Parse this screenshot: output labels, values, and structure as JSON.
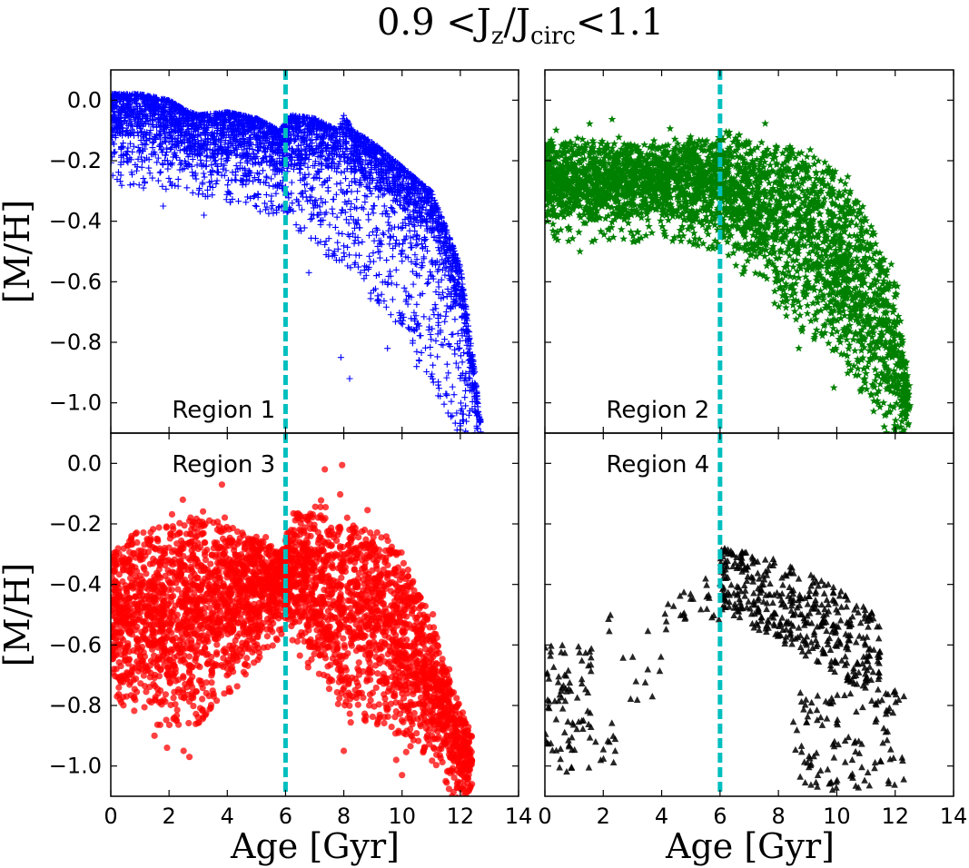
{
  "title": "0.9 < J_z / J_circ < 1.1",
  "title_parts": {
    "lead": "0.9 <J",
    "sub1": "z",
    "mid": "/J",
    "sub2": "circ",
    "tail": "<1.1"
  },
  "chart_data": {
    "type": "scatter",
    "xlabel": "Age [Gyr]",
    "ylabel": "[M/H]",
    "xlim": [
      0,
      14
    ],
    "ylim": [
      -1.1,
      0.1
    ],
    "x_ticks": [
      "0",
      "2",
      "4",
      "6",
      "8",
      "10",
      "12",
      "14"
    ],
    "y_ticks": [
      "0.0",
      "−0.2",
      "−0.4",
      "−0.6",
      "−0.8",
      "−1.0"
    ],
    "vline": {
      "x": 6.0,
      "color": "#00bfbf",
      "style": "dashed"
    },
    "grid": false,
    "panels": [
      {
        "label": "Region 1",
        "marker": "plus",
        "color": "#0000ff",
        "envelope": [
          [
            0,
            0.02
          ],
          [
            1,
            0.02
          ],
          [
            2,
            0.0
          ],
          [
            2.5,
            -0.03
          ],
          [
            3,
            -0.05
          ],
          [
            4,
            -0.04
          ],
          [
            5,
            -0.06
          ],
          [
            5.8,
            -0.1
          ],
          [
            6.2,
            -0.05
          ],
          [
            7,
            -0.06
          ],
          [
            7.8,
            -0.1
          ],
          [
            8,
            -0.05
          ],
          [
            8.3,
            -0.1
          ],
          [
            9,
            -0.14
          ],
          [
            10,
            -0.22
          ],
          [
            11,
            -0.3
          ],
          [
            11.5,
            -0.42
          ],
          [
            12,
            -0.55
          ],
          [
            12.5,
            -0.9
          ],
          [
            12.7,
            -1.1
          ]
        ],
        "lower": [
          [
            0,
            -0.2
          ],
          [
            2,
            -0.22
          ],
          [
            4,
            -0.26
          ],
          [
            6,
            -0.32
          ],
          [
            8,
            -0.48
          ],
          [
            10,
            -0.7
          ],
          [
            11,
            -0.85
          ],
          [
            12,
            -1.05
          ]
        ],
        "outliers": [
          [
            1.8,
            -0.35
          ],
          [
            3.2,
            -0.38
          ],
          [
            8.2,
            -0.92
          ],
          [
            7.9,
            -0.85
          ],
          [
            9.5,
            -0.82
          ],
          [
            10.5,
            -0.88
          ],
          [
            6.8,
            -0.57
          ],
          [
            5.9,
            -0.2
          ]
        ]
      },
      {
        "label": "Region 2",
        "marker": "star",
        "color": "#008000",
        "envelope": [
          [
            0,
            -0.14
          ],
          [
            2,
            -0.14
          ],
          [
            4,
            -0.15
          ],
          [
            6,
            -0.12
          ],
          [
            8,
            -0.14
          ],
          [
            9,
            -0.16
          ],
          [
            10,
            -0.23
          ],
          [
            11,
            -0.35
          ],
          [
            11.5,
            -0.5
          ],
          [
            12,
            -0.6
          ],
          [
            12.5,
            -0.95
          ]
        ],
        "lower": [
          [
            0,
            -0.38
          ],
          [
            2,
            -0.4
          ],
          [
            4,
            -0.38
          ],
          [
            6,
            -0.42
          ],
          [
            7,
            -0.52
          ],
          [
            8,
            -0.62
          ],
          [
            9,
            -0.7
          ],
          [
            10,
            -0.78
          ],
          [
            11,
            -0.92
          ],
          [
            12,
            -1.08
          ]
        ],
        "outliers": [
          [
            1.2,
            -0.5
          ],
          [
            2.2,
            -0.46
          ],
          [
            8.7,
            -0.82
          ],
          [
            9.9,
            -0.95
          ],
          [
            11.6,
            -1.0
          ],
          [
            12.1,
            -1.08
          ]
        ]
      },
      {
        "label": "Region 3",
        "marker": "circle",
        "color": "#ff0000",
        "envelope": [
          [
            0,
            -0.3
          ],
          [
            1,
            -0.22
          ],
          [
            2,
            -0.2
          ],
          [
            3,
            -0.18
          ],
          [
            4,
            -0.2
          ],
          [
            5,
            -0.25
          ],
          [
            5.9,
            -0.28
          ],
          [
            6.1,
            -0.22
          ],
          [
            6.5,
            -0.15
          ],
          [
            7,
            -0.16
          ],
          [
            8,
            -0.2
          ],
          [
            9,
            -0.2
          ],
          [
            10,
            -0.3
          ],
          [
            10.5,
            -0.4
          ],
          [
            11,
            -0.5
          ],
          [
            11.5,
            -0.68
          ],
          [
            12,
            -0.8
          ],
          [
            12.4,
            -0.9
          ]
        ],
        "lower": [
          [
            0,
            -0.7
          ],
          [
            1,
            -0.75
          ],
          [
            2,
            -0.82
          ],
          [
            3,
            -0.78
          ],
          [
            4,
            -0.7
          ],
          [
            5,
            -0.58
          ],
          [
            6,
            -0.48
          ],
          [
            7,
            -0.65
          ],
          [
            8,
            -0.75
          ],
          [
            9,
            -0.78
          ],
          [
            10,
            -0.85
          ],
          [
            11,
            -0.9
          ],
          [
            12,
            -1.08
          ]
        ],
        "outliers": [
          [
            2.5,
            -0.95
          ],
          [
            2.7,
            -0.97
          ],
          [
            1.5,
            -0.9
          ],
          [
            8.0,
            -0.95
          ],
          [
            9.8,
            -0.98
          ],
          [
            10.0,
            -1.03
          ],
          [
            11.5,
            -1.05
          ],
          [
            12.3,
            -1.08
          ]
        ]
      },
      {
        "label": "Region 4",
        "marker": "triangle",
        "color": "#000000",
        "clusters": [
          {
            "x": [
              0,
              1.6
            ],
            "y": [
              -0.95,
              -0.6
            ],
            "n": 70
          },
          {
            "x": [
              0.5,
              2.5
            ],
            "y": [
              -1.03,
              -0.85
            ],
            "n": 25
          },
          {
            "x": [
              2,
              4
            ],
            "y": [
              -0.8,
              -0.5
            ],
            "n": 14
          },
          {
            "x": [
              4,
              6
            ],
            "y": [
              -0.55,
              -0.38
            ],
            "n": 25
          },
          {
            "x": [
              6,
              11.5
            ],
            "y": [
              -0.75,
              -0.24
            ],
            "n": 440
          },
          {
            "x": [
              8.5,
              12.3
            ],
            "y": [
              -1.08,
              -0.75
            ],
            "n": 120
          }
        ]
      }
    ]
  }
}
